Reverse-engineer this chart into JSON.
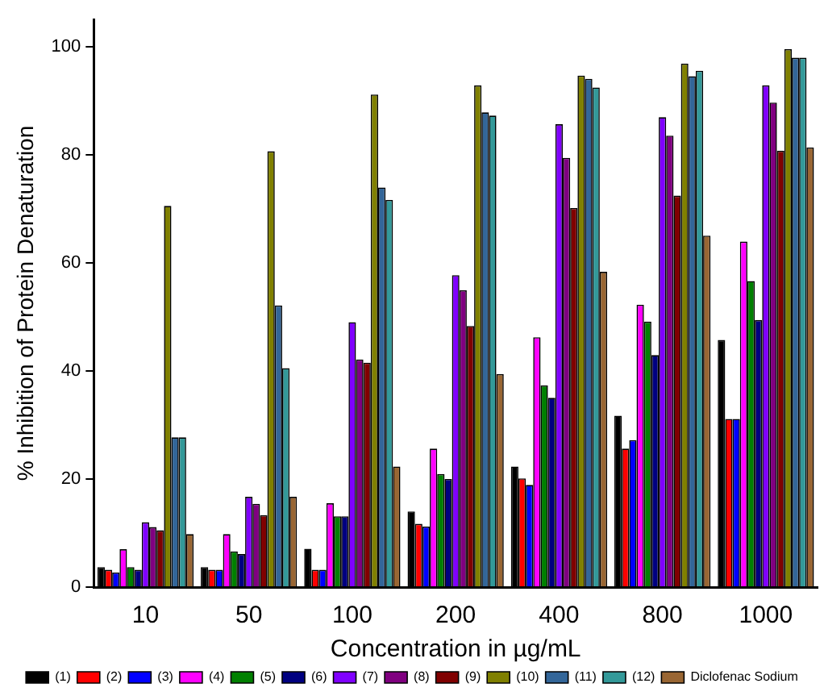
{
  "chart_data": {
    "type": "bar",
    "xlabel": "Concentration in µg/mL",
    "ylabel": "% Inhibition of Protein Denaturation",
    "categories": [
      "10",
      "50",
      "100",
      "200",
      "400",
      "800",
      "1000"
    ],
    "series": [
      {
        "name": "(1)",
        "color": "#000000",
        "values": [
          3.7,
          3.7,
          7.1,
          14.0,
          22.3,
          31.7,
          45.7
        ]
      },
      {
        "name": "(2)",
        "color": "#ff0000",
        "values": [
          3.2,
          3.2,
          3.2,
          11.7,
          20.1,
          25.6,
          31.1
        ]
      },
      {
        "name": "(3)",
        "color": "#0000ff",
        "values": [
          2.7,
          3.2,
          3.2,
          11.2,
          18.9,
          27.2,
          31.1
        ]
      },
      {
        "name": "(4)",
        "color": "#ff00ff",
        "values": [
          7.0,
          9.8,
          15.5,
          25.6,
          46.2,
          52.2,
          63.9
        ]
      },
      {
        "name": "(5)",
        "color": "#008000",
        "values": [
          3.7,
          6.6,
          13.1,
          20.9,
          37.3,
          49.1,
          56.6
        ]
      },
      {
        "name": "(6)",
        "color": "#000080",
        "values": [
          3.2,
          6.1,
          13.1,
          20.0,
          35.0,
          42.9,
          49.4
        ]
      },
      {
        "name": "(7)",
        "color": "#8000ff",
        "values": [
          12.0,
          16.7,
          49.0,
          57.7,
          85.6,
          86.9,
          92.8
        ]
      },
      {
        "name": "(8)",
        "color": "#800080",
        "values": [
          11.1,
          15.4,
          42.1,
          54.9,
          79.4,
          83.5,
          89.6
        ]
      },
      {
        "name": "(9)",
        "color": "#800000",
        "values": [
          10.5,
          13.3,
          41.5,
          48.3,
          70.1,
          72.4,
          80.7
        ]
      },
      {
        "name": "(10)",
        "color": "#808000",
        "values": [
          70.5,
          80.6,
          91.1,
          92.8,
          94.6,
          96.8,
          99.5
        ]
      },
      {
        "name": "(11)",
        "color": "#336699",
        "values": [
          27.7,
          52.1,
          73.9,
          87.8,
          94.0,
          94.5,
          97.9
        ]
      },
      {
        "name": "(12)",
        "color": "#339999",
        "values": [
          27.7,
          40.5,
          71.6,
          87.2,
          92.4,
          95.5,
          97.9
        ]
      },
      {
        "name": "Diclofenac Sodium",
        "color": "#996633",
        "values": [
          9.8,
          16.7,
          22.3,
          39.4,
          58.3,
          65.0,
          81.3
        ]
      }
    ],
    "ylim": [
      0,
      105
    ],
    "yticks": [
      0,
      20,
      40,
      60,
      80,
      100
    ],
    "grid": false,
    "legend": "bottom"
  }
}
